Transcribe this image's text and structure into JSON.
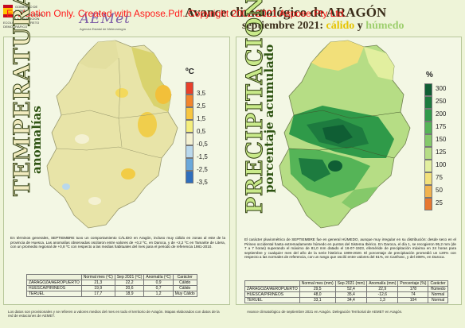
{
  "header": {
    "gov_logo_text": "GOBIERNO DE ESPAÑA · MINISTERIO PARA LA TRANSICIÓN ECOLÓGICA Y EL RETO DEMOGRÁFICO",
    "aemet_name": "AEMet",
    "aemet_sub": "Agencia Estatal de Meteorología",
    "watermark": "Evaluation Only. Created with Aspose.Pdf. Copyright 2002-2021 Aspose Pty Ltd.",
    "title_line1": "Avance climatológico de ARAGÓN",
    "title_month": "septiembre 2021:",
    "title_calido": "cálido",
    "title_y": "y",
    "title_humedo": "húmedo"
  },
  "temperaturas": {
    "vertical_title": "TEMPERATURAS",
    "vertical_subtitle": "anomalías",
    "legend_unit": "ºC",
    "legend": [
      {
        "label": "3,5",
        "color": "#e8402a"
      },
      {
        "label": "2,5",
        "color": "#f2852c"
      },
      {
        "label": "1,5",
        "color": "#f8c640"
      },
      {
        "label": "0,5",
        "color": "#f4ee7d"
      },
      {
        "label": "-0,5",
        "color": "#f4f1d2"
      },
      {
        "label": "-1,5",
        "color": "#b9d8ec"
      },
      {
        "label": "-2,5",
        "color": "#6aa8da"
      },
      {
        "label": "-3,5",
        "color": "#2f6fbd"
      }
    ],
    "description": "En términos generales, SEPTIEMBRE tuvo un comportamiento CÁLIDO en Aragón, incluso muy cálido en zonas al este de la provincia de Huesca. Las anomalías observadas oscilaron entre valores de +0,2 ºC, en Daroca, y de +2,2 ºC en Tamarite de Litera, con un promedio regional de +0,8 ºC con respecto a las medias habituales del mes para el periodo de referencia 1981-2010.",
    "table": {
      "headers": [
        "",
        "Normal mes (ºC)",
        "Sep 2021 (ºC)",
        "Anomalía (ºC)",
        "Carácter"
      ],
      "rows": [
        [
          "ZARAGOZA/AEROPUERTO",
          "21,3",
          "22,2",
          "0,9",
          "Cálido"
        ],
        [
          "HUESCA/PIRINEOS",
          "19,9",
          "20,6",
          "0,7",
          "Cálido"
        ],
        [
          "TERUEL",
          "17,7",
          "18,9",
          "1,2",
          "Muy Cálido"
        ]
      ]
    },
    "footer": "Los datos son provisionales y se refieren a valores medios del mes en todo el territorio de Aragón. Mapas elaborados con datos de la red de estaciones de AEMET."
  },
  "precipitaciones": {
    "vertical_title": "PRECIPITACIONES",
    "vertical_subtitle": "porcentaje acumulado",
    "legend_unit": "%",
    "legend": [
      {
        "label": "300",
        "color": "#0f5e34"
      },
      {
        "label": "250",
        "color": "#1d7b3f"
      },
      {
        "label": "200",
        "color": "#2f9a49"
      },
      {
        "label": "175",
        "color": "#55b457"
      },
      {
        "label": "150",
        "color": "#85c96a"
      },
      {
        "label": "125",
        "color": "#b6dd85"
      },
      {
        "label": "100",
        "color": "#e2ef9f"
      },
      {
        "label": "75",
        "color": "#f2e07a"
      },
      {
        "label": "50",
        "color": "#f1b24e"
      },
      {
        "label": "25",
        "color": "#e7772f"
      }
    ],
    "description": "El carácter pluviométrico de SEPTIEMBRE fue en general HÚMEDO, aunque muy irregular en su distribución: desde seco en el Pirineo occidental hasta extremadamente húmedo en puntos del Sistema Ibérico. En Daroca, el día 1, se recogieron 95,2 mm (de 7 a 7 horas) superando el máximo de 81,0 mm datado el 16-07-1923, efeméride de precipitación máxima en 24 horas para septiembre y cualquier mes del año de la serie histórica 1909-2020. El porcentaje de precipitación promedió un 120% con respecto a las normales de referencia, con un rango que osciló entre valores del 61%, en Canfranc, y del 308%, en Daroca.",
    "table": {
      "headers": [
        "",
        "Normal mes (mm)",
        "Sep 2021 (mm)",
        "Anomalía (mm)",
        "Porcentaje (%)",
        "Carácter"
      ],
      "rows": [
        [
          "ZARAGOZA/AEROPUERTO",
          "29,5",
          "52,4",
          "22,9",
          "178",
          "Húmedo"
        ],
        [
          "HUESCA/PIRINEOS",
          "48,0",
          "35,4",
          "-12,6",
          "74",
          "Normal"
        ],
        [
          "TERUEL",
          "33,1",
          "34,4",
          "1,3",
          "104",
          "Normal"
        ]
      ]
    },
    "footer": "Avance climatológico de septiembre 2021 en Aragón. Delegación Territorial de AEMET en Aragón."
  }
}
